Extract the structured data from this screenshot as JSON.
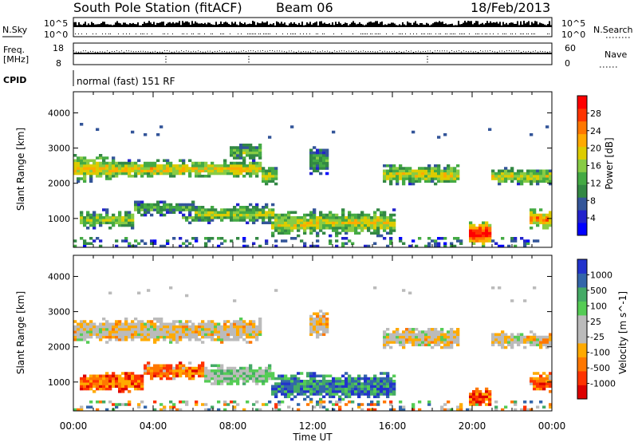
{
  "header": {
    "station": "South Pole Station (fitACF)",
    "beam": "Beam 06",
    "date": "18/Feb/2013"
  },
  "strip_labels": {
    "nsky": "N.Sky",
    "nsky_ticks": [
      "10^5",
      "10^0"
    ],
    "nsearch": "N.Search",
    "nsearch_ticks": [
      "10^5",
      "10^0"
    ],
    "freq_line1": "Freq.",
    "freq_line2": "[MHz]",
    "freq_ticks": [
      "18",
      "8"
    ],
    "nave": "Nave",
    "nave_ticks": [
      "60",
      "0"
    ],
    "cpid": "CPID",
    "cpid_value": "normal (fast) 151 RF"
  },
  "colors": {
    "power": [
      "#0000ff",
      "#2222cc",
      "#335599",
      "#338844",
      "#44aa44",
      "#88cc44",
      "#ddcc00",
      "#ffaa00",
      "#ff7700",
      "#ff3300",
      "#ff0000"
    ],
    "velocity": [
      "#dd0000",
      "#ff3300",
      "#ff7700",
      "#ffaa00",
      "#bbbbbb",
      "#bbbbbb",
      "#55cc55",
      "#44aa66",
      "#3366aa",
      "#2233cc"
    ]
  },
  "chart_data": [
    {
      "type": "heatmap",
      "panel": "power",
      "xlabel": "Time UT",
      "ylabel": "Slant Range [km]",
      "x_ticks": [
        "00:00",
        "04:00",
        "08:00",
        "12:00",
        "16:00",
        "20:00",
        "00:00"
      ],
      "xlim": [
        0,
        24
      ],
      "y_ticks": [
        "1000",
        "2000",
        "3000",
        "4000"
      ],
      "ylim": [
        180,
        4600
      ],
      "colorbar_label": "Power [dB]",
      "colorbar_ticks": [
        "4",
        "8",
        "12",
        "16",
        "20",
        "24",
        "28"
      ],
      "colorbar_range": [
        0,
        30
      ],
      "echo_bands": [
        {
          "t0": 0.0,
          "t1": 2.0,
          "r0": 2050,
          "r1": 2800,
          "level": 0.55
        },
        {
          "t0": 2.0,
          "t1": 9.5,
          "r0": 2150,
          "r1": 2650,
          "level": 0.55
        },
        {
          "t0": 7.8,
          "t1": 9.4,
          "r0": 2650,
          "r1": 3150,
          "level": 0.4
        },
        {
          "t0": 9.5,
          "t1": 10.3,
          "r0": 1900,
          "r1": 2550,
          "level": 0.45
        },
        {
          "t0": 11.8,
          "t1": 12.8,
          "r0": 2250,
          "r1": 3050,
          "level": 0.35
        },
        {
          "t0": 15.5,
          "t1": 19.3,
          "r0": 1950,
          "r1": 2550,
          "level": 0.5
        },
        {
          "t0": 21.0,
          "t1": 24.0,
          "r0": 1950,
          "r1": 2450,
          "level": 0.5
        },
        {
          "t0": 0.3,
          "t1": 3.0,
          "r0": 700,
          "r1": 1250,
          "level": 0.45
        },
        {
          "t0": 3.0,
          "t1": 6.0,
          "r0": 1100,
          "r1": 1500,
          "level": 0.35
        },
        {
          "t0": 5.5,
          "t1": 10.0,
          "r0": 850,
          "r1": 1400,
          "level": 0.45
        },
        {
          "t0": 10.0,
          "t1": 16.2,
          "r0": 500,
          "r1": 1250,
          "level": 0.5
        },
        {
          "t0": 19.8,
          "t1": 20.9,
          "r0": 250,
          "r1": 900,
          "level": 0.85
        },
        {
          "t0": 22.8,
          "t1": 24.0,
          "r0": 700,
          "r1": 1300,
          "level": 0.65
        }
      ]
    },
    {
      "type": "heatmap",
      "panel": "velocity",
      "xlabel": "Time UT",
      "ylabel": "Slant Range [km]",
      "x_ticks": [
        "00:00",
        "04:00",
        "08:00",
        "12:00",
        "16:00",
        "20:00",
        "00:00"
      ],
      "xlim": [
        0,
        24
      ],
      "y_ticks": [
        "1000",
        "2000",
        "3000",
        "4000"
      ],
      "ylim": [
        180,
        4600
      ],
      "colorbar_label": "Velocity [m s^-1]",
      "colorbar_ticks": [
        "-1000",
        "-500",
        "-100",
        "-25",
        "25",
        "100",
        "500",
        "1000"
      ],
      "echo_bands": [
        {
          "t0": 0.0,
          "t1": 9.5,
          "r0": 2100,
          "r1": 2800,
          "level": 0.45
        },
        {
          "t0": 11.8,
          "t1": 12.8,
          "r0": 2250,
          "r1": 3050,
          "level": 0.45
        },
        {
          "t0": 15.5,
          "t1": 19.3,
          "r0": 1950,
          "r1": 2550,
          "level": 0.45
        },
        {
          "t0": 21.0,
          "t1": 24.0,
          "r0": 1950,
          "r1": 2450,
          "level": 0.45
        },
        {
          "t0": 0.3,
          "t1": 3.5,
          "r0": 700,
          "r1": 1300,
          "level": 0.22
        },
        {
          "t0": 3.5,
          "t1": 6.5,
          "r0": 1050,
          "r1": 1550,
          "level": 0.25
        },
        {
          "t0": 6.5,
          "t1": 10.0,
          "r0": 900,
          "r1": 1500,
          "level": 0.6
        },
        {
          "t0": 10.0,
          "t1": 16.2,
          "r0": 500,
          "r1": 1250,
          "level": 0.8
        },
        {
          "t0": 19.8,
          "t1": 20.9,
          "r0": 250,
          "r1": 900,
          "level": 0.2
        },
        {
          "t0": 22.8,
          "t1": 24.0,
          "r0": 700,
          "r1": 1300,
          "level": 0.25
        }
      ]
    }
  ]
}
